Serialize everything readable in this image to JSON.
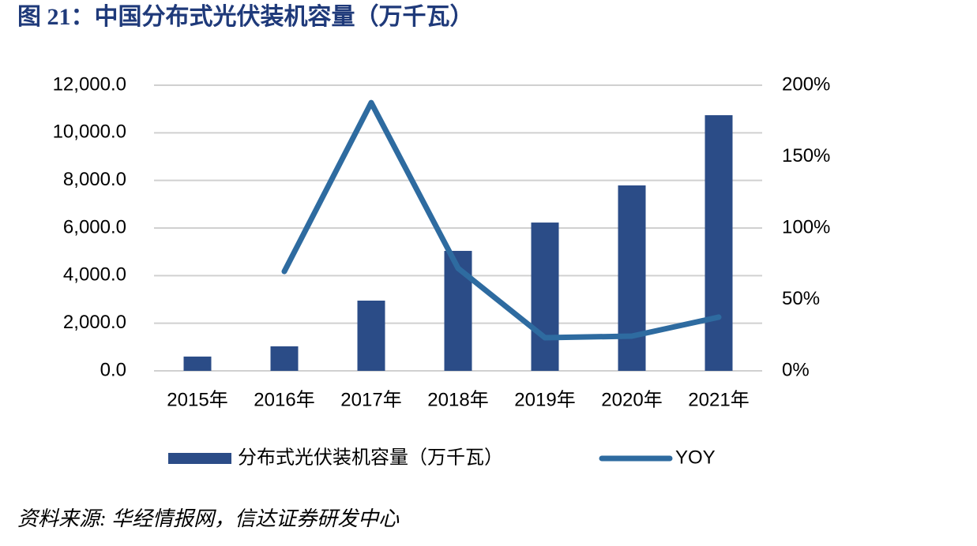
{
  "chart_data": {
    "type": "bar-line",
    "title": "图 21：中国分布式光伏装机容量（万千瓦）",
    "source": "资料来源: 华经情报网，信达证券研发中心",
    "categories": [
      "2015年",
      "2016年",
      "2017年",
      "2018年",
      "2019年",
      "2020年",
      "2021年"
    ],
    "series": [
      {
        "name": "分布式光伏装机容量（万千瓦）",
        "type": "bar",
        "color": "#2b4c87",
        "values": [
          600,
          1030,
          2950,
          5040,
          6230,
          7790,
          10740
        ]
      },
      {
        "name": "YOY",
        "type": "line",
        "axis": "y2",
        "color": "#2e6ba0",
        "values": [
          null,
          69.6,
          187.8,
          71.8,
          23.2,
          24.3,
          37.6
        ]
      }
    ],
    "ylim": [
      0,
      12000
    ],
    "yticks": [
      {
        "value": 0,
        "label": "0.0"
      },
      {
        "value": 2000,
        "label": "2,000.0"
      },
      {
        "value": 4000,
        "label": "4,000.0"
      },
      {
        "value": 6000,
        "label": "6,000.0"
      },
      {
        "value": 8000,
        "label": "8,000.0"
      },
      {
        "value": 10000,
        "label": "10,000.0"
      },
      {
        "value": 12000,
        "label": "12,000.0"
      }
    ],
    "y2lim": [
      0,
      200
    ],
    "y2ticks": [
      {
        "value": 0,
        "label": "0%"
      },
      {
        "value": 50,
        "label": "50%"
      },
      {
        "value": 100,
        "label": "100%"
      },
      {
        "value": 150,
        "label": "150%"
      },
      {
        "value": 200,
        "label": "200%"
      }
    ],
    "grid": true
  }
}
